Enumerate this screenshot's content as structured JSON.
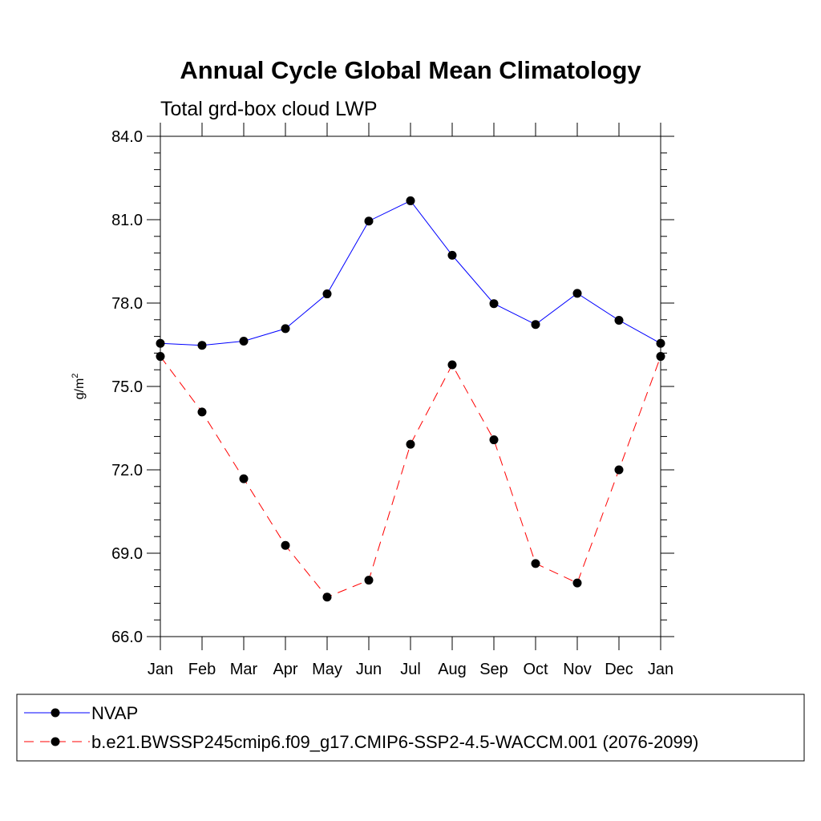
{
  "chart_data": {
    "type": "line",
    "title": "Annual Cycle Global Mean Climatology",
    "subtitle": "Total grd-box cloud LWP",
    "ylabel": "g/m",
    "ylabel_superscript": "2",
    "xlabel": "",
    "categories": [
      "Jan",
      "Feb",
      "Mar",
      "Apr",
      "May",
      "Jun",
      "Jul",
      "Aug",
      "Sep",
      "Oct",
      "Nov",
      "Dec",
      "Jan"
    ],
    "ylim": [
      66.0,
      84.0
    ],
    "yticks": [
      "66.0",
      "69.0",
      "72.0",
      "75.0",
      "78.0",
      "81.0",
      "84.0"
    ],
    "series": [
      {
        "name": "NVAP",
        "color": "#0000ff",
        "dash": "solid",
        "values": [
          76.55,
          76.48,
          76.63,
          77.08,
          78.33,
          80.95,
          81.68,
          79.72,
          77.98,
          77.23,
          78.35,
          77.38,
          76.55
        ]
      },
      {
        "name": "b.e21.BWSSP245cmip6.f09_g17.CMIP6-SSP2-4.5-WACCM.001 (2076-2099)",
        "color": "#ff0000",
        "dash": "dashed",
        "values": [
          76.08,
          74.08,
          71.68,
          69.28,
          67.42,
          68.03,
          72.92,
          75.78,
          73.08,
          68.63,
          67.93,
          72.0,
          76.08
        ]
      }
    ],
    "grid": false,
    "legend_position": "bottom"
  }
}
